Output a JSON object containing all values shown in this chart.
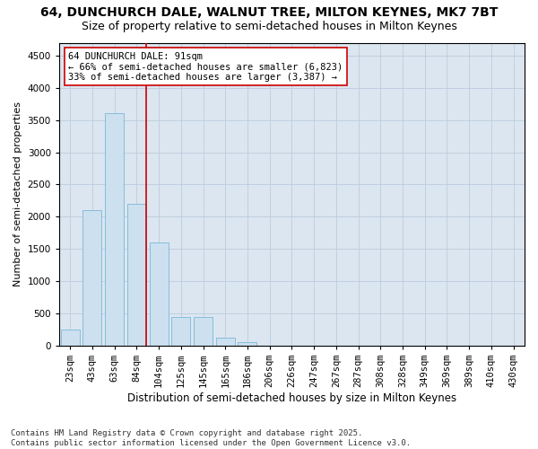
{
  "title1": "64, DUNCHURCH DALE, WALNUT TREE, MILTON KEYNES, MK7 7BT",
  "title2": "Size of property relative to semi-detached houses in Milton Keynes",
  "xlabel": "Distribution of semi-detached houses by size in Milton Keynes",
  "ylabel": "Number of semi-detached properties",
  "categories": [
    "23sqm",
    "43sqm",
    "63sqm",
    "84sqm",
    "104sqm",
    "125sqm",
    "145sqm",
    "165sqm",
    "186sqm",
    "206sqm",
    "226sqm",
    "247sqm",
    "267sqm",
    "287sqm",
    "308sqm",
    "328sqm",
    "349sqm",
    "369sqm",
    "389sqm",
    "410sqm",
    "430sqm"
  ],
  "values": [
    250,
    2100,
    3600,
    2200,
    1600,
    450,
    450,
    120,
    60,
    5,
    0,
    0,
    0,
    0,
    0,
    0,
    0,
    0,
    0,
    0,
    0
  ],
  "bar_color": "#cce0f0",
  "bar_edge_color": "#7ab8d8",
  "vline_color": "#cc0000",
  "vline_x_index": 3.42,
  "annotation_text": "64 DUNCHURCH DALE: 91sqm\n← 66% of semi-detached houses are smaller (6,823)\n33% of semi-detached houses are larger (3,387) →",
  "annotation_box_color": "#ffffff",
  "annotation_box_edge_color": "#cc0000",
  "ylim": [
    0,
    4700
  ],
  "yticks": [
    0,
    500,
    1000,
    1500,
    2000,
    2500,
    3000,
    3500,
    4000,
    4500
  ],
  "grid_color": "#bbccdd",
  "bg_color": "#dce6f0",
  "footer_text": "Contains HM Land Registry data © Crown copyright and database right 2025.\nContains public sector information licensed under the Open Government Licence v3.0.",
  "title1_fontsize": 10,
  "title2_fontsize": 9,
  "xlabel_fontsize": 8.5,
  "ylabel_fontsize": 8,
  "tick_fontsize": 7.5,
  "annotation_fontsize": 7.5,
  "footer_fontsize": 6.5
}
